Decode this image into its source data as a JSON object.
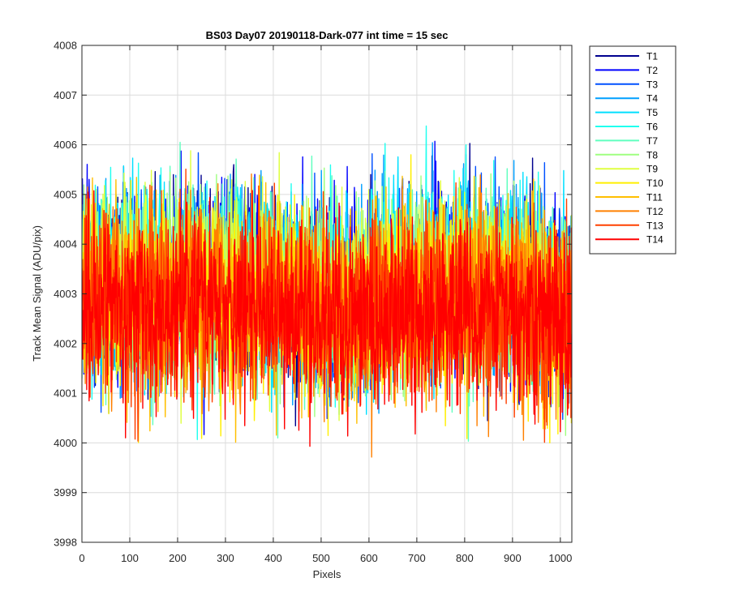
{
  "chart_data": {
    "type": "line",
    "title": "BS03 Day07 20190118-Dark-077 int time = 15 sec",
    "xlabel": "Pixels",
    "ylabel": "Track Mean Signal (ADU/pix)",
    "xlim": [
      0,
      1024
    ],
    "ylim": [
      3998,
      4008
    ],
    "grid": true,
    "legend_position": "outside-top-right",
    "x_ticks": [
      0,
      100,
      200,
      300,
      400,
      500,
      600,
      700,
      800,
      900,
      1000
    ],
    "y_ticks": [
      3998,
      3999,
      4000,
      4001,
      4002,
      4003,
      4004,
      4005,
      4006,
      4007,
      4008
    ],
    "series": [
      {
        "name": "T1",
        "color": "#00008f",
        "mean": 4003.3,
        "spread": 1.5
      },
      {
        "name": "T2",
        "color": "#0000ff",
        "mean": 4003.3,
        "spread": 1.5
      },
      {
        "name": "T3",
        "color": "#0050ff",
        "mean": 4003.3,
        "spread": 1.5
      },
      {
        "name": "T4",
        "color": "#009fff",
        "mean": 4003.3,
        "spread": 1.5
      },
      {
        "name": "T5",
        "color": "#00dfff",
        "mean": 4003.3,
        "spread": 1.5
      },
      {
        "name": "T6",
        "color": "#20ffef",
        "mean": 4003.3,
        "spread": 1.5
      },
      {
        "name": "T7",
        "color": "#60ffbf",
        "mean": 4003.2,
        "spread": 1.5
      },
      {
        "name": "T8",
        "color": "#9fff80",
        "mean": 4003.2,
        "spread": 1.5
      },
      {
        "name": "T9",
        "color": "#dfff40",
        "mean": 4003.1,
        "spread": 1.5
      },
      {
        "name": "T10",
        "color": "#ffef00",
        "mean": 4003.0,
        "spread": 1.5
      },
      {
        "name": "T11",
        "color": "#ffbf00",
        "mean": 4003.0,
        "spread": 1.5
      },
      {
        "name": "T12",
        "color": "#ff8000",
        "mean": 4002.9,
        "spread": 1.5
      },
      {
        "name": "T13",
        "color": "#ff4000",
        "mean": 4002.8,
        "spread": 1.5
      },
      {
        "name": "T14",
        "color": "#ff0000",
        "mean": 4002.7,
        "spread": 1.5
      }
    ],
    "n_points": 1024
  }
}
